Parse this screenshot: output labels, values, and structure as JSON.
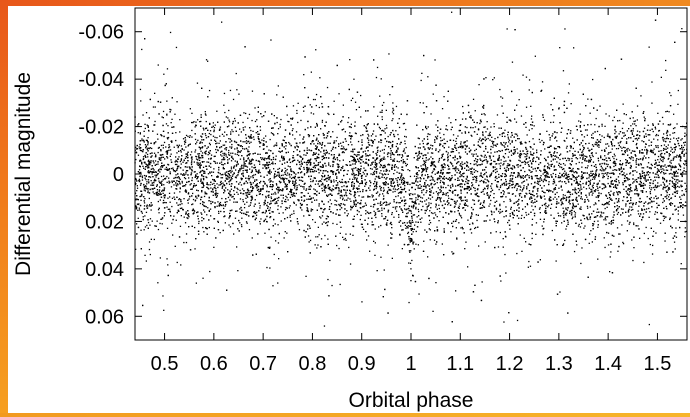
{
  "chart_data": {
    "type": "scatter",
    "title": "",
    "xlabel": "Orbital phase",
    "ylabel": "Differential magnitude",
    "xlim": [
      0.44,
      1.56
    ],
    "ylim": [
      -0.07,
      0.07
    ],
    "y_inverted": true,
    "x_ticks": [
      0.5,
      0.6,
      0.7,
      0.8,
      0.9,
      1,
      1.1,
      1.2,
      1.3,
      1.4,
      1.5
    ],
    "y_ticks": [
      -0.06,
      -0.04,
      -0.02,
      0,
      0.02,
      0.04,
      0.06
    ],
    "x_tick_labels": [
      "0.5",
      "0.6",
      "0.7",
      "0.8",
      "0.9",
      "1",
      "1.1",
      "1.2",
      "1.3",
      "1.4",
      "1.5"
    ],
    "y_tick_labels": [
      "-0.06",
      "-0.04",
      "-0.02",
      "0",
      "0.02",
      "0.04",
      "0.06"
    ],
    "grid": false,
    "legend": "none",
    "marker_color": "#000000",
    "series": [
      {
        "baseline": 0.0,
        "scatter_sd": 0.012,
        "transit": {
          "center": 1.0,
          "depth": 0.022,
          "half_width": 0.012
        },
        "x": [
          0.45,
          0.47,
          0.5,
          0.52,
          0.55,
          0.58,
          0.6,
          0.63,
          0.66,
          0.7,
          0.73,
          0.76,
          0.8,
          0.84,
          0.88,
          0.9,
          0.93,
          0.96,
          0.98,
          0.99,
          1.0,
          1.01,
          1.02,
          1.05,
          1.08,
          1.1,
          1.13,
          1.16,
          1.2,
          1.23,
          1.27,
          1.3,
          1.33,
          1.37,
          1.4,
          1.44,
          1.48,
          1.5,
          1.53,
          1.55
        ],
        "y": [
          0.001,
          -0.004,
          0.002,
          0.008,
          -0.003,
          0.012,
          0.004,
          -0.009,
          0.001,
          0.006,
          -0.002,
          0.003,
          -0.001,
          0.009,
          0.0,
          -0.006,
          0.004,
          0.002,
          0.008,
          0.015,
          0.021,
          0.01,
          0.002,
          -0.003,
          0.005,
          -0.001,
          0.007,
          0.001,
          -0.004,
          0.003,
          -0.002,
          0.006,
          0.001,
          -0.005,
          0.004,
          0.002,
          -0.003,
          0.005,
          0.0,
          0.003
        ]
      }
    ]
  }
}
